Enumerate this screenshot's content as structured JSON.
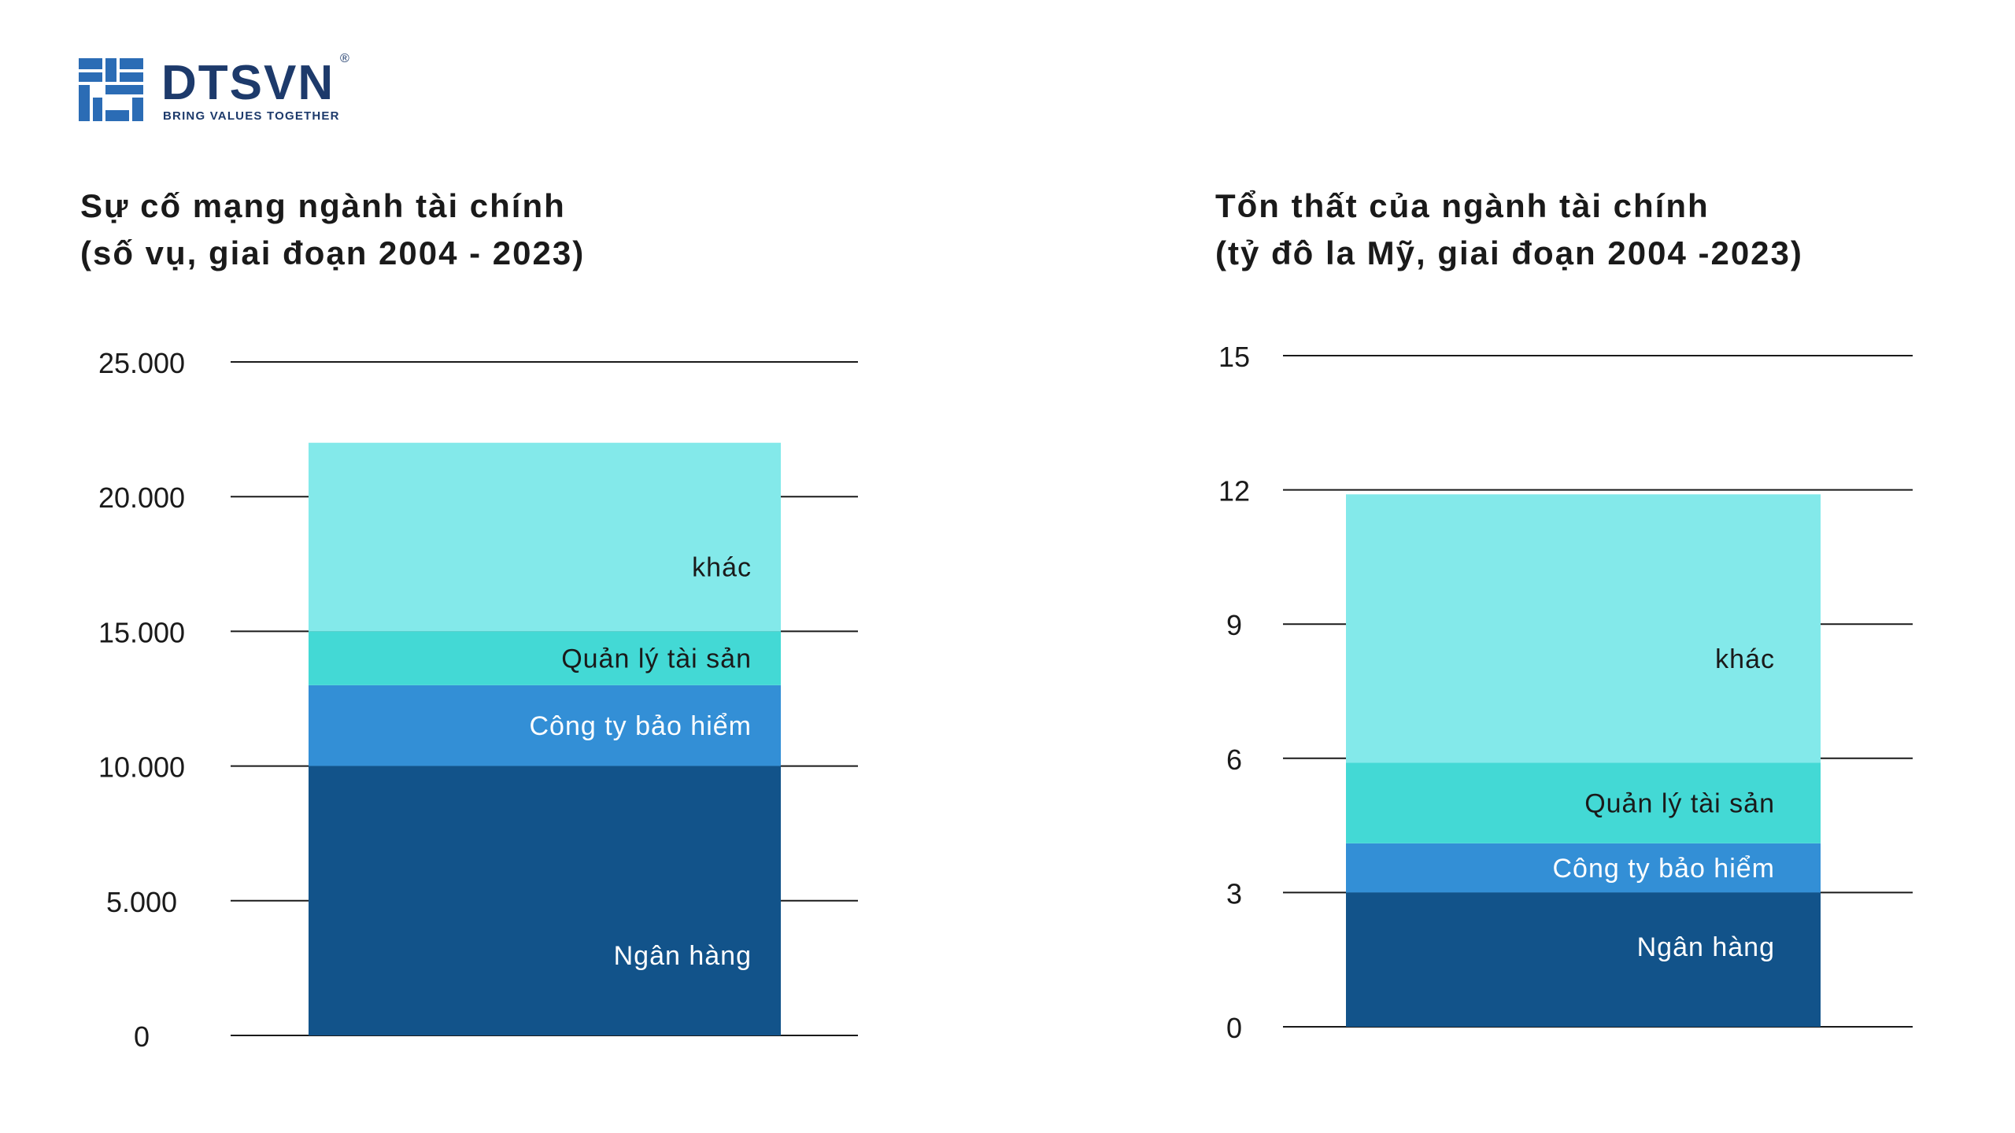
{
  "brand": {
    "name": "DTSVN",
    "tagline": "BRING VALUES TOGETHER",
    "registered": "®",
    "colors": {
      "dark": "#1d3a6b",
      "mid": "#2b6cb5"
    }
  },
  "chart_data": [
    {
      "type": "bar",
      "stacked": true,
      "title": "Sự cố mạng ngành tài chính",
      "subtitle": "(số vụ, giai đoạn 2004 - 2023)",
      "categories": [
        ""
      ],
      "series": [
        {
          "name": "Ngân hàng",
          "values": [
            10000
          ],
          "color": "#12538a"
        },
        {
          "name": "Công ty bảo hiểm",
          "values": [
            3000
          ],
          "color": "#338fd6"
        },
        {
          "name": "Quản lý tài sản",
          "values": [
            2000
          ],
          "color": "#43d9d5"
        },
        {
          "name": "khác",
          "values": [
            7000
          ],
          "color": "#83e9ea"
        }
      ],
      "yticks": [
        "0",
        "5.000",
        "10.000",
        "15.000",
        "20.000",
        "25.000"
      ],
      "ylim": [
        0,
        25000
      ],
      "grid": true,
      "legend": "inside-bars"
    },
    {
      "type": "bar",
      "stacked": true,
      "title": "Tổn thất của ngành tài chính",
      "subtitle": "(tỷ đô la Mỹ, giai đoạn 2004 -2023)",
      "categories": [
        ""
      ],
      "series": [
        {
          "name": "Ngân hàng",
          "values": [
            3
          ],
          "color": "#12538a"
        },
        {
          "name": "Công ty bảo hiểm",
          "values": [
            1.1
          ],
          "color": "#338fd6"
        },
        {
          "name": "Quản lý tài sản",
          "values": [
            1.8
          ],
          "color": "#43d9d5"
        },
        {
          "name": "khác",
          "values": [
            6
          ],
          "color": "#83e9ea"
        }
      ],
      "yticks": [
        "0",
        "3",
        "6",
        "9",
        "12",
        "15"
      ],
      "ylim": [
        0,
        15
      ],
      "grid": true,
      "legend": "inside-bars"
    }
  ]
}
